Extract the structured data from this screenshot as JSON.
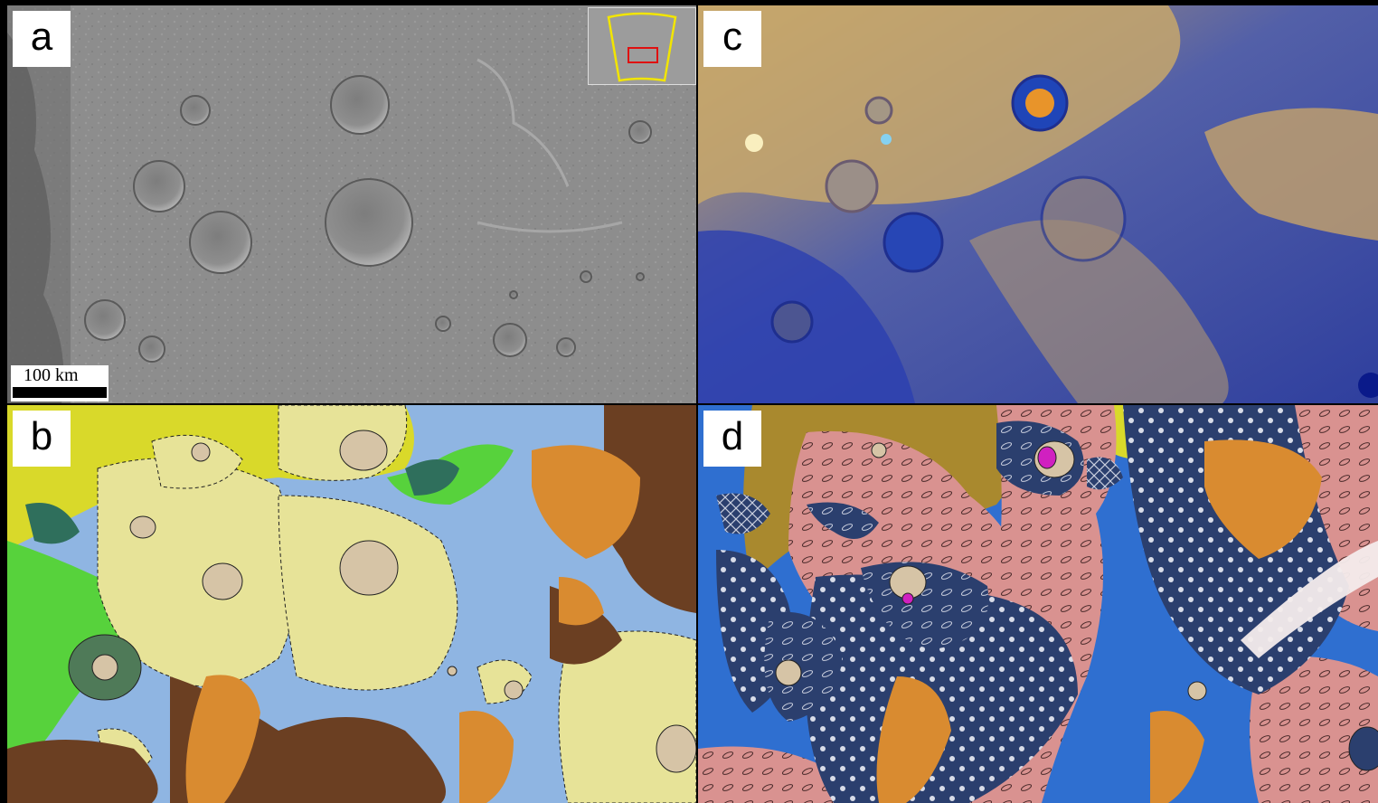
{
  "figure": {
    "panels": [
      {
        "id": "a",
        "label": "a",
        "type": "image mosaic (grayscale)"
      },
      {
        "id": "b",
        "label": "b",
        "type": "geologic map"
      },
      {
        "id": "c",
        "label": "c",
        "type": "enhanced color mosaic"
      },
      {
        "id": "d",
        "label": "d",
        "type": "geologic map with patterns"
      }
    ],
    "scale_bar": {
      "label": "100 km"
    },
    "inset": {
      "outline_color": "#f2e500",
      "box_color": "#e01010"
    }
  },
  "colors": {
    "grayscale_bg": "#8c8c8c",
    "yellow_unit": "#d9d92a",
    "pale_yellow_unit": "#e7e398",
    "light_blue_unit": "#8fb5e2",
    "brown_unit": "#6b3f22",
    "orange_unit": "#d98b30",
    "green_unit": "#57d23c",
    "dark_green_unit": "#2f6f5c",
    "tan_unit": "#d6c4a6",
    "pink_unit": "#d99290",
    "navy_unit": "#2b3f6e",
    "olive_unit": "#a9892e",
    "bright_blue_unit": "#2f6fd0",
    "magenta_unit": "#d020c0"
  }
}
